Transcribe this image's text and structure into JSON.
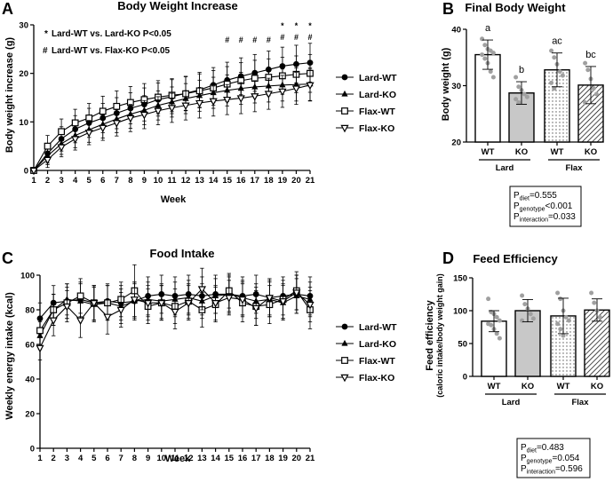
{
  "colors": {
    "ink": "#000000",
    "ko_fill": "#c8c8c8",
    "dot": "#a0a0a0",
    "background": "#ffffff"
  },
  "chart_data": [
    {
      "id": "A",
      "panel_letter": "A",
      "type": "line",
      "title": "Body Weight Increase",
      "xlabel": "Week",
      "ylabel": "Body weight increase (g)",
      "x": [
        1,
        2,
        3,
        4,
        5,
        6,
        7,
        8,
        9,
        10,
        11,
        12,
        13,
        14,
        15,
        16,
        17,
        18,
        19,
        20,
        21
      ],
      "ylim": [
        0,
        30
      ],
      "yticks": [
        0,
        10,
        20,
        30
      ],
      "series": [
        {
          "name": "Lard-WT",
          "marker": "circle",
          "values": [
            0,
            3.5,
            6.5,
            8.5,
            9.8,
            10.8,
            11.8,
            12.8,
            13.6,
            14.6,
            15.2,
            15.9,
            16.6,
            17.6,
            18.6,
            19.4,
            20.1,
            20.8,
            21.5,
            21.9,
            22.2
          ],
          "errors": [
            0.3,
            2,
            2.5,
            2.8,
            3,
            3,
            3.2,
            3.2,
            3.4,
            3.4,
            3.5,
            3.5,
            3.6,
            3.6,
            3.7,
            3.8,
            3.8,
            3.8,
            3.9,
            3.9,
            4
          ]
        },
        {
          "name": "Lard-KO",
          "marker": "triangle",
          "values": [
            0,
            3,
            5.5,
            7.2,
            8.4,
            9.5,
            10.6,
            11.6,
            12.4,
            13.4,
            14.1,
            14.8,
            15.4,
            16.0,
            16.5,
            16.9,
            17.2,
            17.4,
            17.6,
            17.7,
            17.8
          ],
          "errors": [
            0.3,
            1.8,
            2.2,
            2.5,
            2.6,
            2.8,
            2.8,
            2.9,
            3,
            3,
            3.1,
            3.1,
            3.2,
            3.2,
            3.2,
            3.3,
            3.3,
            3.3,
            3.3,
            3.4,
            3.4
          ]
        },
        {
          "name": "Flax-WT",
          "marker": "square",
          "values": [
            0,
            5,
            8,
            9.8,
            10.8,
            12.2,
            13.2,
            14.0,
            14.6,
            15.1,
            15.5,
            15.8,
            16.4,
            17.0,
            17.8,
            18.5,
            19.0,
            19.2,
            19.5,
            19.8,
            20.0
          ],
          "errors": [
            0.3,
            2.2,
            2.6,
            2.8,
            3,
            3.1,
            3.2,
            3.3,
            3.3,
            3.4,
            3.4,
            3.5,
            3.5,
            3.6,
            3.6,
            3.7,
            3.7,
            3.8,
            3.8,
            3.8,
            3.9
          ]
        },
        {
          "name": "Flax-KO",
          "marker": "triangle-down",
          "values": [
            0,
            2.2,
            4.8,
            6.5,
            7.8,
            8.8,
            9.8,
            10.8,
            11.5,
            12.3,
            12.9,
            13.4,
            13.9,
            14.3,
            14.6,
            14.9,
            15.3,
            15.8,
            16.3,
            16.9,
            17.6
          ],
          "errors": [
            0.3,
            1.6,
            2,
            2.3,
            2.5,
            2.6,
            2.7,
            2.8,
            2.9,
            2.9,
            3,
            3,
            3.1,
            3.1,
            3.1,
            3.2,
            3.2,
            3.2,
            3.3,
            3.3,
            3.3
          ]
        }
      ],
      "annotation_lines": [
        {
          "symbol": "*",
          "text": "Lard-WT vs. Lard-KO P<0.05"
        },
        {
          "symbol": "#",
          "text": "Lard-WT vs. Flax-KO P<0.05"
        }
      ],
      "significance_marks": [
        {
          "week": 15,
          "symbols": [
            "#"
          ]
        },
        {
          "week": 16,
          "symbols": [
            "#"
          ]
        },
        {
          "week": 17,
          "symbols": [
            "#"
          ]
        },
        {
          "week": 18,
          "symbols": [
            "#"
          ]
        },
        {
          "week": 19,
          "symbols": [
            "*",
            "#"
          ]
        },
        {
          "week": 20,
          "symbols": [
            "*",
            "#"
          ]
        },
        {
          "week": 21,
          "symbols": [
            "*",
            "#"
          ]
        }
      ],
      "legend_position": "right"
    },
    {
      "id": "B",
      "panel_letter": "B",
      "type": "bar",
      "title": "Final Body Weight",
      "ylabel": "Body weight (g)",
      "xlabel": "",
      "ylim": [
        20,
        40
      ],
      "yticks": [
        20,
        30,
        40
      ],
      "categories": [
        "WT",
        "KO",
        "WT",
        "KO"
      ],
      "groups": [
        {
          "label": "Lard",
          "span": [
            0,
            1
          ]
        },
        {
          "label": "Flax",
          "span": [
            2,
            3
          ]
        }
      ],
      "fills": [
        "white",
        "gray",
        "dots",
        "hatch"
      ],
      "values": [
        35.5,
        28.7,
        32.8,
        30.1
      ],
      "errors": [
        2.6,
        2.0,
        3.0,
        3.3
      ],
      "letters": [
        "a",
        "b",
        "ac",
        "bc"
      ],
      "points": [
        [
          38.3,
          37.2,
          36.5,
          36.2,
          35.8,
          35.5,
          34.8,
          34.0,
          32.5,
          31.5
        ],
        [
          31.5,
          29.8,
          29.2,
          28.5,
          28.0,
          27.6,
          27.0
        ],
        [
          36.2,
          35.0,
          33.8,
          32.5,
          31.8,
          30.5,
          29.5
        ],
        [
          34.0,
          32.8,
          31.2,
          29.5,
          28.5,
          27.0
        ]
      ],
      "stats": [
        {
          "sym": "P",
          "sub": "diet",
          "rest": "=0.555"
        },
        {
          "sym": "P",
          "sub": "genotype",
          "rest": "<0.001"
        },
        {
          "sym": "P",
          "sub": "interaction",
          "rest": "=0.033"
        }
      ]
    },
    {
      "id": "C",
      "panel_letter": "C",
      "type": "line",
      "title": "Food Intake",
      "xlabel": "Week",
      "ylabel": "Weekly energy intake (kcal)",
      "x": [
        1,
        2,
        3,
        4,
        5,
        6,
        7,
        8,
        9,
        10,
        11,
        12,
        13,
        14,
        15,
        16,
        17,
        18,
        19,
        20,
        21
      ],
      "ylim": [
        0,
        100
      ],
      "yticks": [
        0,
        20,
        40,
        60,
        80,
        100
      ],
      "series": [
        {
          "name": "Lard-WT",
          "marker": "circle",
          "values": [
            75,
            84,
            85,
            86,
            84,
            85,
            84,
            85,
            88,
            89,
            88,
            89,
            88,
            89,
            89,
            88,
            89,
            87,
            88,
            89,
            88
          ],
          "errors": [
            9,
            10,
            10,
            10,
            10,
            10,
            10,
            11,
            11,
            11,
            11,
            11,
            11,
            11,
            11,
            11,
            11,
            11,
            11,
            11,
            11
          ]
        },
        {
          "name": "Lard-KO",
          "marker": "triangle",
          "values": [
            65,
            80,
            86,
            85,
            83,
            84,
            82,
            85,
            86,
            85,
            86,
            87,
            85,
            88,
            89,
            87,
            85,
            86,
            84,
            88,
            86
          ],
          "errors": [
            8,
            9,
            9,
            10,
            10,
            10,
            10,
            10,
            10,
            10,
            10,
            10,
            10,
            10,
            10,
            10,
            10,
            10,
            10,
            10,
            10
          ]
        },
        {
          "name": "Flax-WT",
          "marker": "square",
          "values": [
            68,
            80,
            84,
            88,
            84,
            84,
            86,
            91,
            82,
            84,
            82,
            85,
            80,
            83,
            91,
            84,
            82,
            83,
            86,
            91,
            80
          ],
          "errors": [
            8,
            9,
            9,
            10,
            10,
            10,
            10,
            15,
            10,
            10,
            10,
            10,
            10,
            10,
            10,
            11,
            11,
            11,
            11,
            11,
            11
          ]
        },
        {
          "name": "Flax-KO",
          "marker": "triangle-down",
          "values": [
            58,
            74,
            82,
            74,
            84,
            76,
            80,
            86,
            84,
            84,
            79,
            84,
            92,
            84,
            87,
            86,
            81,
            87,
            85,
            90,
            83
          ],
          "errors": [
            7,
            9,
            9,
            10,
            10,
            10,
            10,
            10,
            10,
            10,
            10,
            10,
            12,
            10,
            10,
            10,
            10,
            10,
            10,
            10,
            10
          ]
        }
      ],
      "legend_position": "right"
    },
    {
      "id": "D",
      "panel_letter": "D",
      "type": "bar",
      "title": "Feed Efficiency",
      "ylabel": "Feed efficiency",
      "ylabel2": "(caloric intake/body weight gain)",
      "xlabel": "",
      "ylim": [
        0,
        150
      ],
      "yticks": [
        0,
        50,
        100,
        150
      ],
      "categories": [
        "WT",
        "KO",
        "WT",
        "KO"
      ],
      "groups": [
        {
          "label": "Lard",
          "span": [
            0,
            1
          ]
        },
        {
          "label": "Flax",
          "span": [
            2,
            3
          ]
        }
      ],
      "fills": [
        "white",
        "gray",
        "dots",
        "hatch"
      ],
      "values": [
        84,
        100,
        92,
        101
      ],
      "errors": [
        16,
        17,
        27,
        17
      ],
      "letters": [],
      "points": [
        [
          118,
          98,
          95,
          90,
          85,
          80,
          78,
          72,
          65,
          58
        ],
        [
          123,
          110,
          103,
          95,
          88,
          85
        ],
        [
          127,
          118,
          100,
          90,
          85,
          80,
          72,
          62
        ],
        [
          127,
          112,
          100,
          90
        ]
      ],
      "stats": [
        {
          "sym": "P",
          "sub": "diet",
          "rest": "=0.483"
        },
        {
          "sym": "P",
          "sub": "genotype",
          "rest": "=0.054"
        },
        {
          "sym": "P",
          "sub": "interaction",
          "rest": "=0.596"
        }
      ]
    }
  ]
}
